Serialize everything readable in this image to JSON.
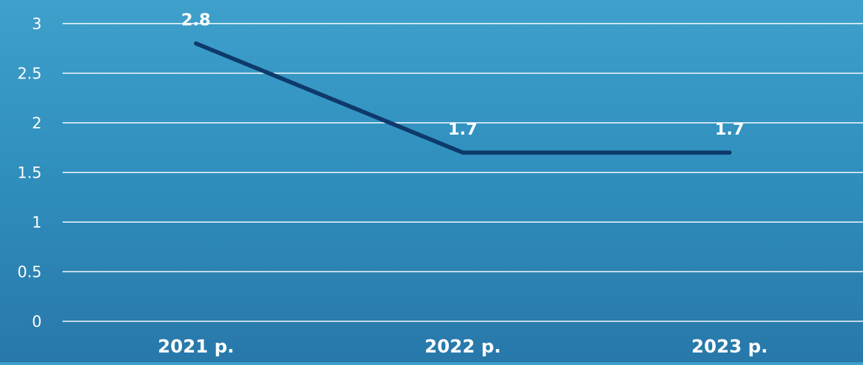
{
  "chart_data": {
    "type": "line",
    "categories": [
      "2021 р.",
      "2022 р.",
      "2023 р."
    ],
    "series": [
      {
        "values": [
          2.8,
          1.7,
          1.7
        ],
        "color": "#0d3a6b"
      }
    ],
    "data_labels": [
      "2.8",
      "1.7",
      "1.7"
    ],
    "y_ticks": [
      "0",
      "0.5",
      "1",
      "1.5",
      "2",
      "2.5",
      "3"
    ],
    "ylim": [
      0,
      3
    ],
    "grid": true,
    "legend": false,
    "title": "",
    "xlabel": "",
    "ylabel": ""
  }
}
